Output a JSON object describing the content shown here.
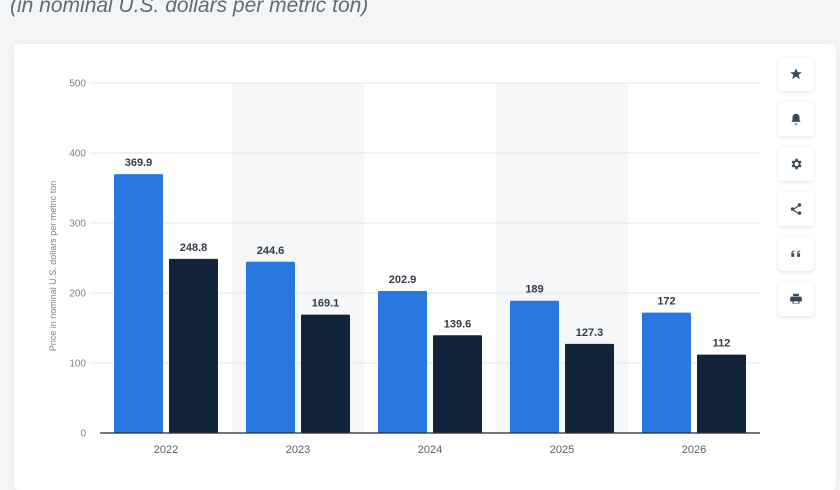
{
  "header": {
    "subtitle": "(in nominal U.S. dollars per metric ton)"
  },
  "toolbar": {
    "buttons": [
      {
        "name": "favorite",
        "icon": "star-icon"
      },
      {
        "name": "notification",
        "icon": "bell-icon"
      },
      {
        "name": "settings",
        "icon": "gear-icon"
      },
      {
        "name": "share",
        "icon": "share-icon"
      },
      {
        "name": "cite",
        "icon": "quote-icon"
      },
      {
        "name": "print",
        "icon": "print-icon"
      }
    ]
  },
  "colors": {
    "series1": "#2878e0",
    "series2": "#12243a",
    "band": "#f6f7f9",
    "grid": "#e3e6ea",
    "text": "#7a8490",
    "label": "#333b45"
  },
  "chart_data": {
    "type": "bar",
    "categories": [
      "2022",
      "2023",
      "2024",
      "2025",
      "2026"
    ],
    "series": [
      {
        "values": [
          369.9,
          244.6,
          202.9,
          189,
          172
        ]
      },
      {
        "values": [
          248.8,
          169.1,
          139.6,
          127.3,
          112
        ]
      }
    ],
    "data_labels": [
      [
        "369.9",
        "244.6",
        "202.9",
        "189",
        "172"
      ],
      [
        "248.8",
        "169.1",
        "139.6",
        "127.3",
        "112"
      ]
    ],
    "ylabel": "Price in nominal U.S. dollars per metric ton",
    "xlabel": "",
    "ylim": [
      0,
      500
    ],
    "yticks": [
      0,
      100,
      200,
      300,
      400,
      500
    ],
    "grid": true
  }
}
